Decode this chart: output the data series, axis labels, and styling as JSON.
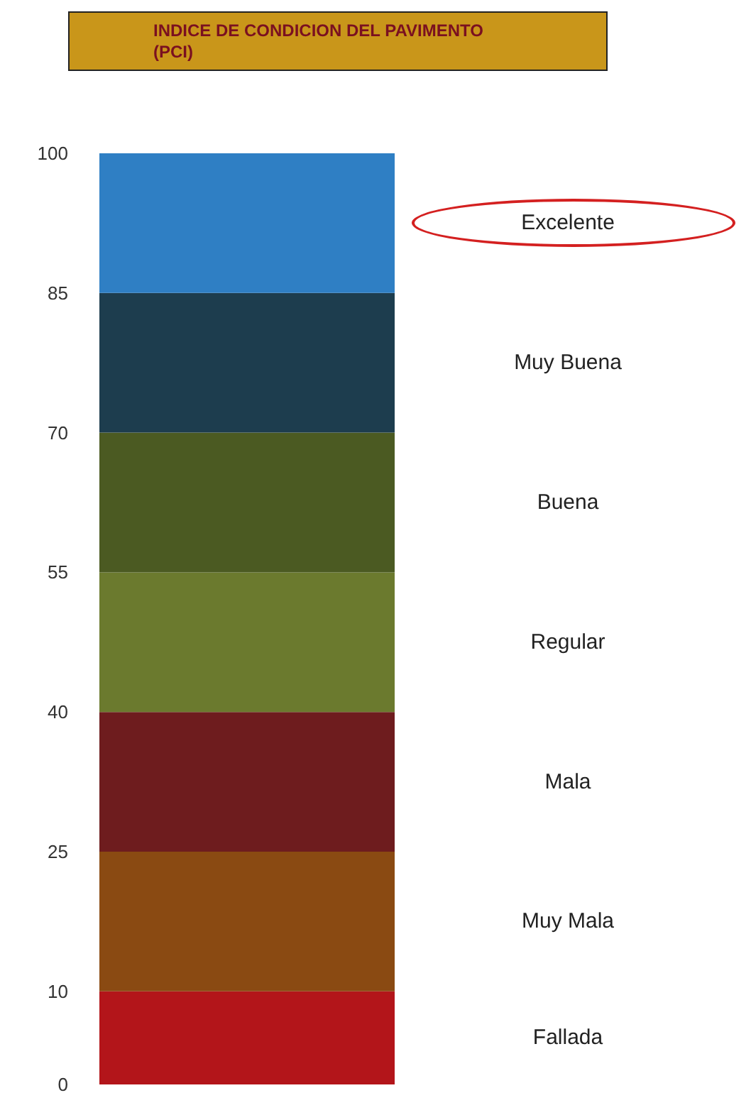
{
  "chart_data": {
    "type": "bar",
    "title": "INDICE DE CONDICION DEL PAVIMENTO (PCI)",
    "categories": [
      null
    ],
    "stacked": true,
    "ylim": [
      0,
      100
    ],
    "yticks": [
      0,
      10,
      25,
      40,
      55,
      70,
      85,
      100
    ],
    "grid": false,
    "tick_labels": "y",
    "series": [
      {
        "name": "Fallada",
        "color": "#b3151a",
        "values": [
          10
        ]
      },
      {
        "name": "Muy Mala",
        "color": "#8a4a12",
        "values": [
          15
        ]
      },
      {
        "name": "Mala",
        "color": "#6e1c1e",
        "values": [
          15
        ]
      },
      {
        "name": "Regular",
        "color": "#6b7a2e",
        "values": [
          15
        ]
      },
      {
        "name": "Buena",
        "color": "#4b5a22",
        "values": [
          15
        ]
      },
      {
        "name": "Muy Buena",
        "color": "#1d3d4e",
        "values": [
          15
        ]
      },
      {
        "name": "Excelente",
        "color": "#2f7fc4",
        "values": [
          15
        ]
      }
    ]
  }
}
